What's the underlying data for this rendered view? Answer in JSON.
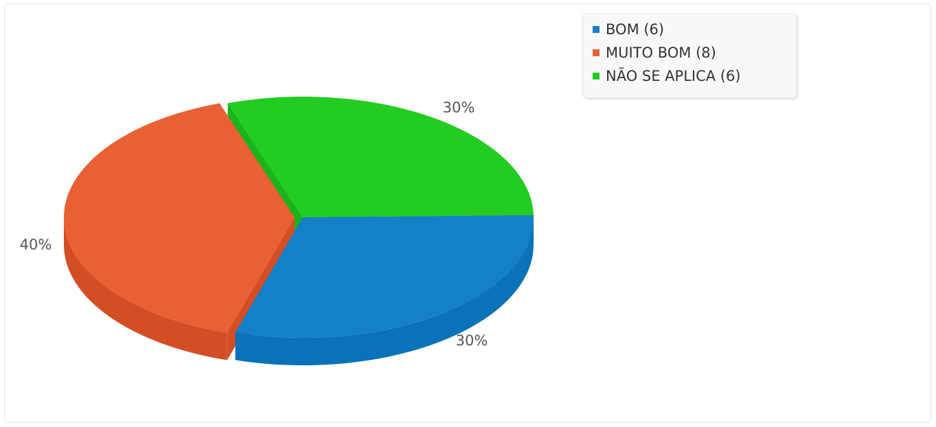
{
  "chart_data": {
    "type": "pie",
    "style": "3d",
    "categories": [
      "BOM",
      "MUITO BOM",
      "NÃO SE APLICA"
    ],
    "values": [
      6,
      8,
      6
    ],
    "percent_labels": [
      "30%",
      "40%",
      "30%"
    ],
    "legend_labels": [
      "BOM (6)",
      "MUITO BOM (8)",
      "NÃO SE APLICA (6)"
    ],
    "colors": [
      "#1380c8",
      "#e86033",
      "#22cc22"
    ],
    "side_colors": [
      "#0a72b8",
      "#d44e25",
      "#1ab51a"
    ],
    "legend_position": "top-right",
    "exploded_slice": "MUITO BOM"
  }
}
